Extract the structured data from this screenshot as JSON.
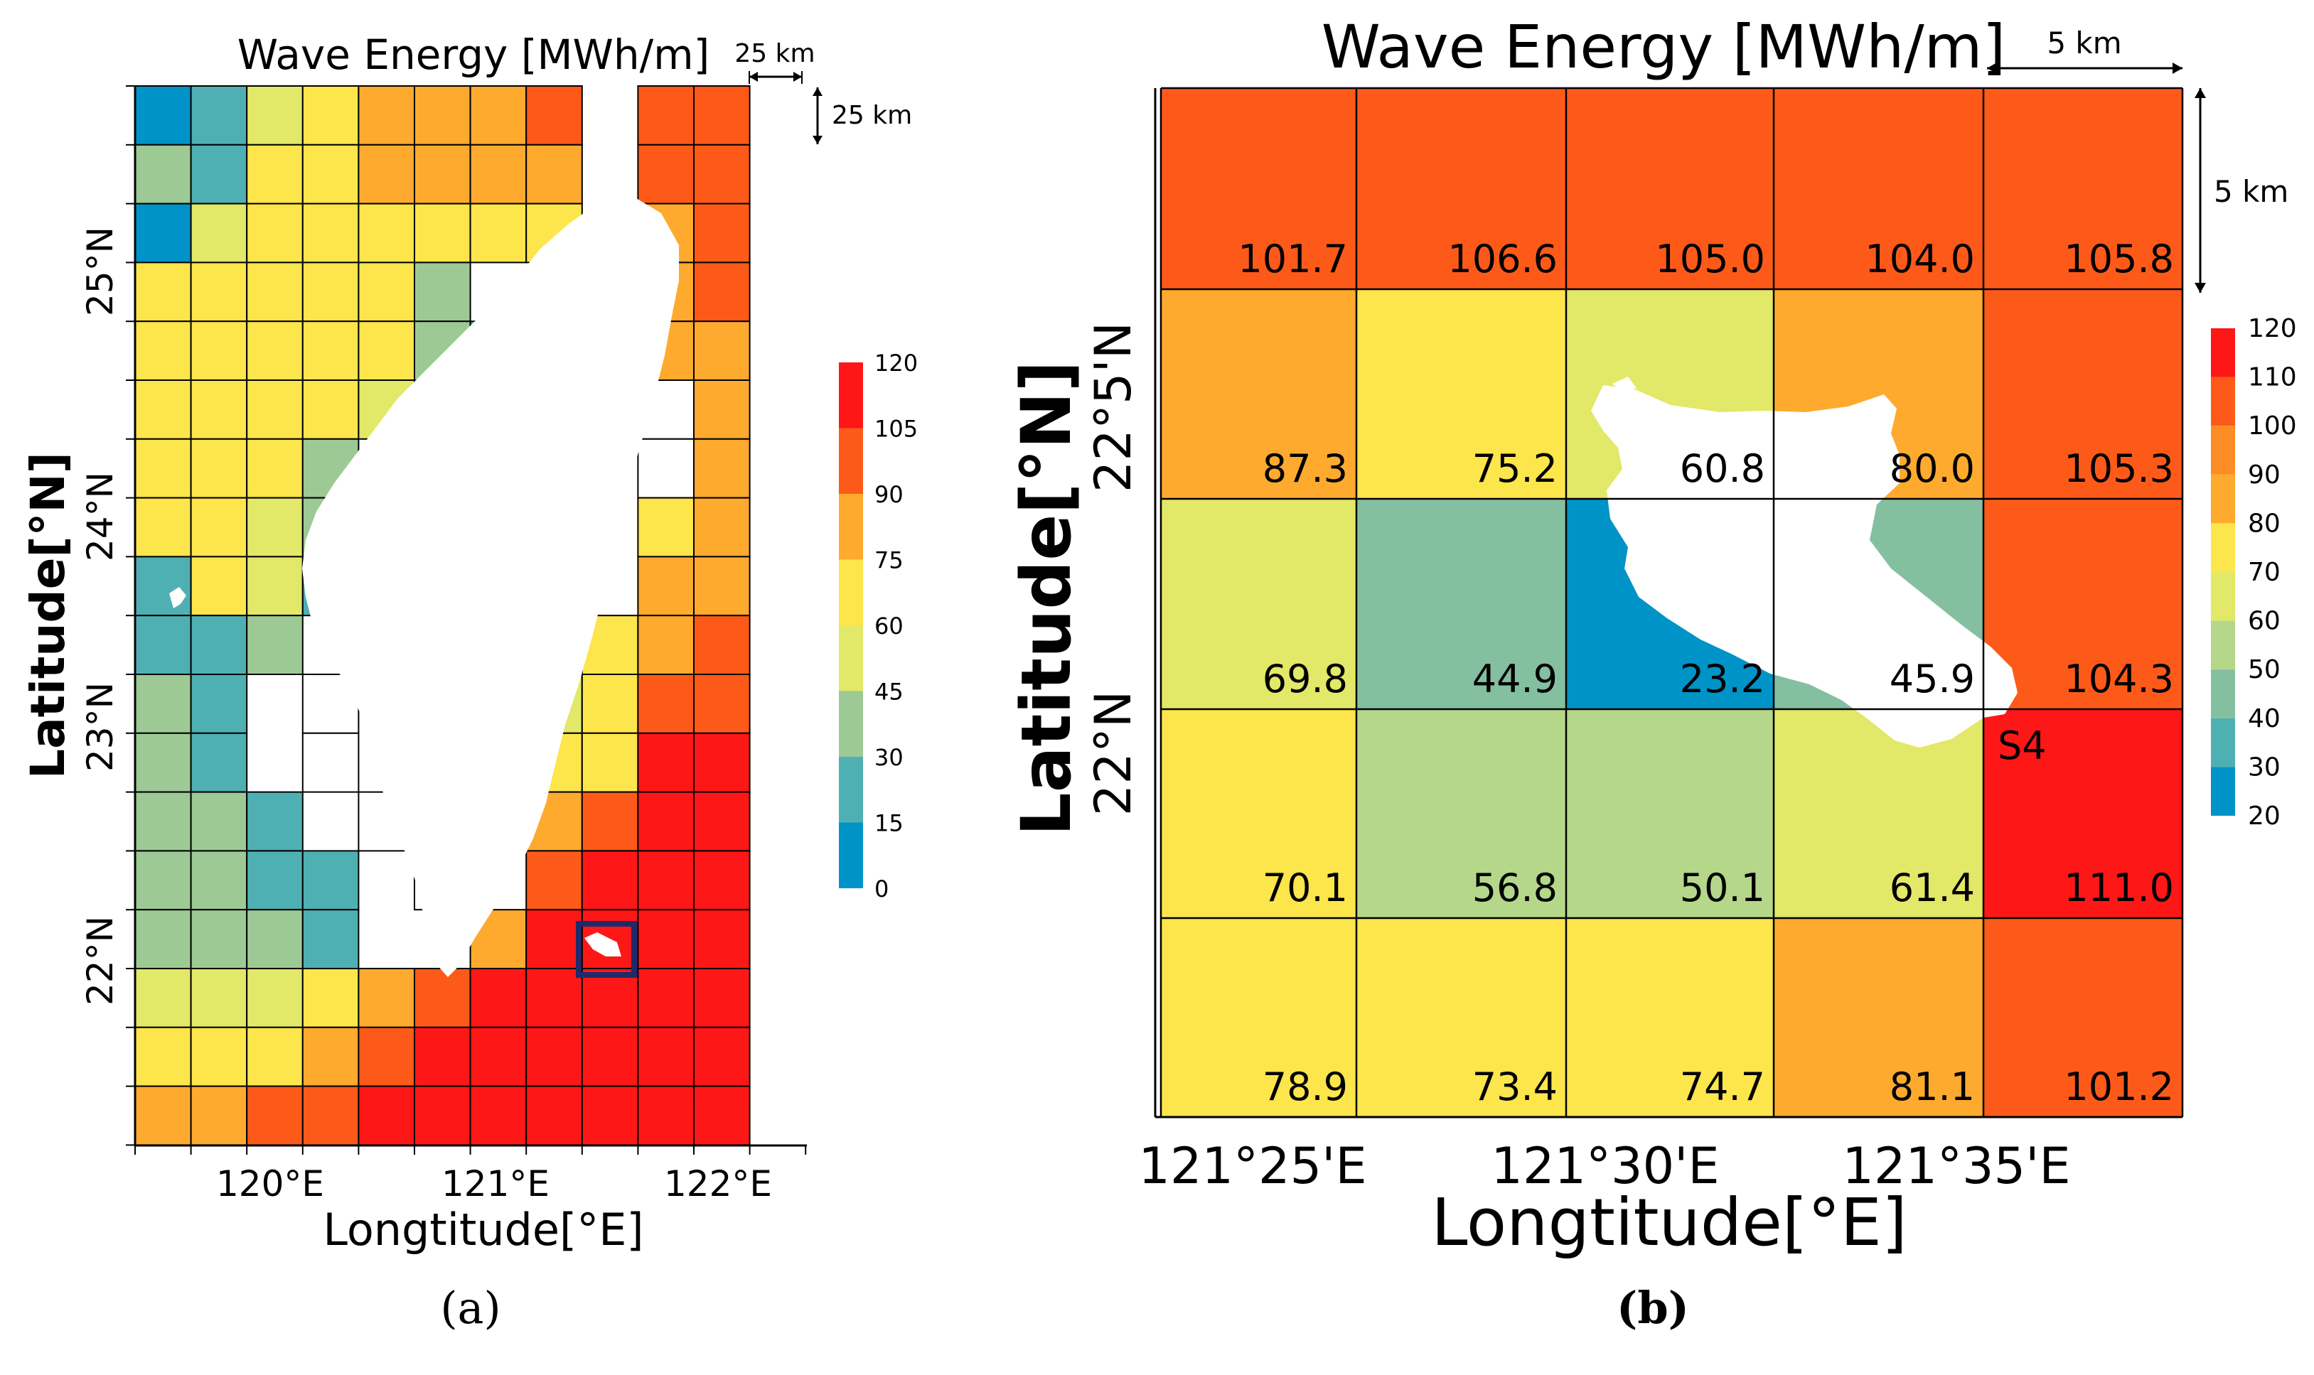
{
  "colors": {
    "c0": "#0093c8",
    "c1": "#4fb0b3",
    "c2": "#9dc995",
    "c3": "#e2e867",
    "c4": "#fde54c",
    "c5": "#fdaa2f",
    "c6": "#fd5a1a",
    "c7": "#fe1717",
    "b0": "#0093c8",
    "b1": "#4fb0b3",
    "b2": "#84bfa0",
    "b3": "#b4d78a",
    "b4": "#e2e867",
    "b5": "#fde54c",
    "b6": "#fdaa2f",
    "b7": "#fd8c24",
    "b8": "#fd5a1a",
    "b9": "#fe1717",
    "grid": "#000000",
    "land": "#ffffff",
    "highlight": "#1f2a6b"
  },
  "chart_data": [
    {
      "panel": "a",
      "caption": "(a)",
      "type": "heatmap",
      "title": "Wave Energy [MWh/m]",
      "xlabel": "Longtitude[°E]",
      "ylabel": "Latitude[°N]",
      "xticks": [
        "120°E",
        "121°E",
        "122°E"
      ],
      "yticks": [
        "25°N",
        "24°N",
        "23°N",
        "22°N"
      ],
      "scale_x_label": "25 km",
      "scale_y_label": "25 km",
      "colorbar": {
        "labels": [
          "120",
          "105",
          "90",
          "75",
          "60",
          "45",
          "30",
          "15",
          "0"
        ]
      },
      "grid_rows": [
        "01345556 66",
        "21445555 66",
        "03444444 56",
        "444442  .56",
        "4444421 .55",
        "44443 .  .5",
        "4442 .   .5",
        "4432 .   45",
        "1431 .   55",
        "112 .   456",
        "21 .   3466",
        "21 .   4477",
        "221 .  5677",
        "2211 . 6777",
        "2221  57777",
        "33345677777",
        "44456777777",
        "55667777777"
      ]
    },
    {
      "panel": "b",
      "caption": "(b)",
      "type": "heatmap",
      "title": "Wave Energy [MWh/m]",
      "xlabel": "Longtitude[°E]",
      "ylabel": "Latitude[°N]",
      "xticks": [
        "121°25'E",
        "121°30'E",
        "121°35'E"
      ],
      "yticks": [
        "22°5'N",
        "22°N"
      ],
      "scale_x_label": "5 km",
      "scale_y_label": "5 km",
      "site_label": "S4",
      "colorbar": {
        "labels": [
          "120",
          "110",
          "100",
          "90",
          "80",
          "70",
          "60",
          "50",
          "40",
          "30",
          "20"
        ]
      },
      "values": [
        [
          "101.7",
          "106.6",
          "105.0",
          "104.0",
          "105.8"
        ],
        [
          "87.3",
          "75.2",
          "60.8",
          "80.0",
          "105.3"
        ],
        [
          "69.8",
          "44.9",
          "23.2",
          "45.9",
          "104.3"
        ],
        [
          "70.1",
          "56.8",
          "50.1",
          "61.4",
          "111.0"
        ],
        [
          "78.9",
          "73.4",
          "74.7",
          "81.1",
          "101.2"
        ]
      ]
    }
  ]
}
